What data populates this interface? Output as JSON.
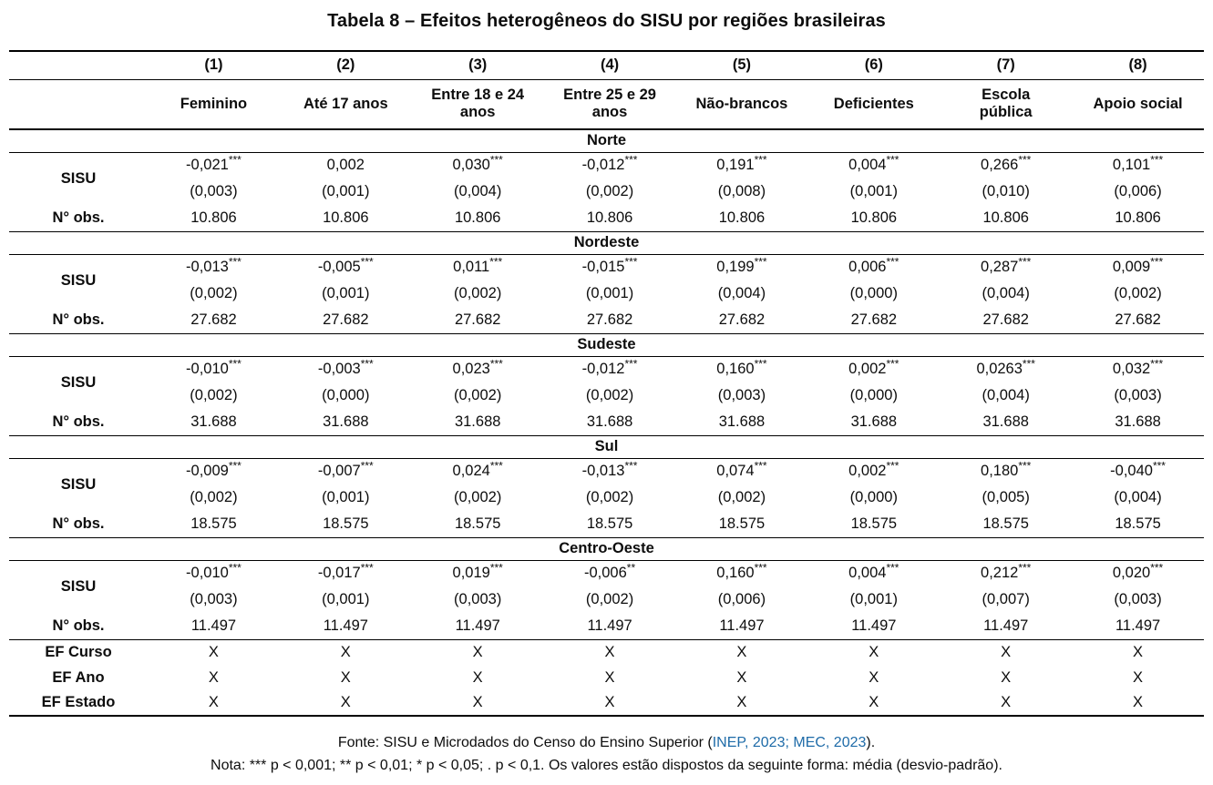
{
  "title": "Tabela 8 – Efeitos heterogêneos do SISU por regiões brasileiras",
  "table": {
    "column_numbers": [
      "(1)",
      "(2)",
      "(3)",
      "(4)",
      "(5)",
      "(6)",
      "(7)",
      "(8)"
    ],
    "column_headers": [
      "Feminino",
      "Até 17 anos",
      "Entre 18 e 24\nanos",
      "Entre 25 e 29\nanos",
      "Não-brancos",
      "Deficientes",
      "Escola\npública",
      "Apoio social"
    ],
    "row_labels": {
      "sisu": "SISU",
      "obs": "N° obs."
    },
    "regions": [
      {
        "name": "Norte",
        "coef": [
          "-0,021***",
          "0,002",
          "0,030***",
          "-0,012***",
          "0,191***",
          "0,004***",
          "0,266***",
          "0,101***"
        ],
        "se": [
          "(0,003)",
          "(0,001)",
          "(0,004)",
          "(0,002)",
          "(0,008)",
          "(0,001)",
          "(0,010)",
          "(0,006)"
        ],
        "obs_values": [
          "10.806",
          "10.806",
          "10.806",
          "10.806",
          "10.806",
          "10.806",
          "10.806",
          "10.806"
        ]
      },
      {
        "name": "Nordeste",
        "coef": [
          "-0,013***",
          "-0,005***",
          "0,011***",
          "-0,015***",
          "0,199***",
          "0,006***",
          "0,287***",
          "0,009***"
        ],
        "se": [
          "(0,002)",
          "(0,001)",
          "(0,002)",
          "(0,001)",
          "(0,004)",
          "(0,000)",
          "(0,004)",
          "(0,002)"
        ],
        "obs_values": [
          "27.682",
          "27.682",
          "27.682",
          "27.682",
          "27.682",
          "27.682",
          "27.682",
          "27.682"
        ]
      },
      {
        "name": "Sudeste",
        "coef": [
          "-0,010***",
          "-0,003***",
          "0,023***",
          "-0,012***",
          "0,160***",
          "0,002***",
          "0,0263***",
          "0,032***"
        ],
        "se": [
          "(0,002)",
          "(0,000)",
          "(0,002)",
          "(0,002)",
          "(0,003)",
          "(0,000)",
          "(0,004)",
          "(0,003)"
        ],
        "obs_values": [
          "31.688",
          "31.688",
          "31.688",
          "31.688",
          "31.688",
          "31.688",
          "31.688",
          "31.688"
        ]
      },
      {
        "name": "Sul",
        "coef": [
          "-0,009***",
          "-0,007***",
          "0,024***",
          "-0,013***",
          "0,074***",
          "0,002***",
          "0,180***",
          "-0,040***"
        ],
        "se": [
          "(0,002)",
          "(0,001)",
          "(0,002)",
          "(0,002)",
          "(0,002)",
          "(0,000)",
          "(0,005)",
          "(0,004)"
        ],
        "obs_values": [
          "18.575",
          "18.575",
          "18.575",
          "18.575",
          "18.575",
          "18.575",
          "18.575",
          "18.575"
        ]
      },
      {
        "name": "Centro-Oeste",
        "coef": [
          "-0,010***",
          "-0,017***",
          "0,019***",
          "-0,006**",
          "0,160***",
          "0,004***",
          "0,212***",
          "0,020***"
        ],
        "se": [
          "(0,003)",
          "(0,001)",
          "(0,003)",
          "(0,002)",
          "(0,006)",
          "(0,001)",
          "(0,007)",
          "(0,003)"
        ],
        "obs_values": [
          "11.497",
          "11.497",
          "11.497",
          "11.497",
          "11.497",
          "11.497",
          "11.497",
          "11.497"
        ]
      }
    ],
    "fixed_effects": [
      {
        "label": "EF Curso",
        "values": [
          "X",
          "X",
          "X",
          "X",
          "X",
          "X",
          "X",
          "X"
        ]
      },
      {
        "label": "EF Ano",
        "values": [
          "X",
          "X",
          "X",
          "X",
          "X",
          "X",
          "X",
          "X"
        ]
      },
      {
        "label": "EF Estado",
        "values": [
          "X",
          "X",
          "X",
          "X",
          "X",
          "X",
          "X",
          "X"
        ]
      }
    ]
  },
  "footer": {
    "fonte_prefix": "Fonte: SISU e Microdados do Censo do Ensino Superior (",
    "fonte_link": "INEP, 2023; MEC, 2023",
    "fonte_suffix": ").",
    "nota": "Nota: *** p < 0,001; ** p < 0,01; * p < 0,05; . p < 0,1. Os valores estão dispostos da seguinte forma: média (desvio-padrão)."
  }
}
